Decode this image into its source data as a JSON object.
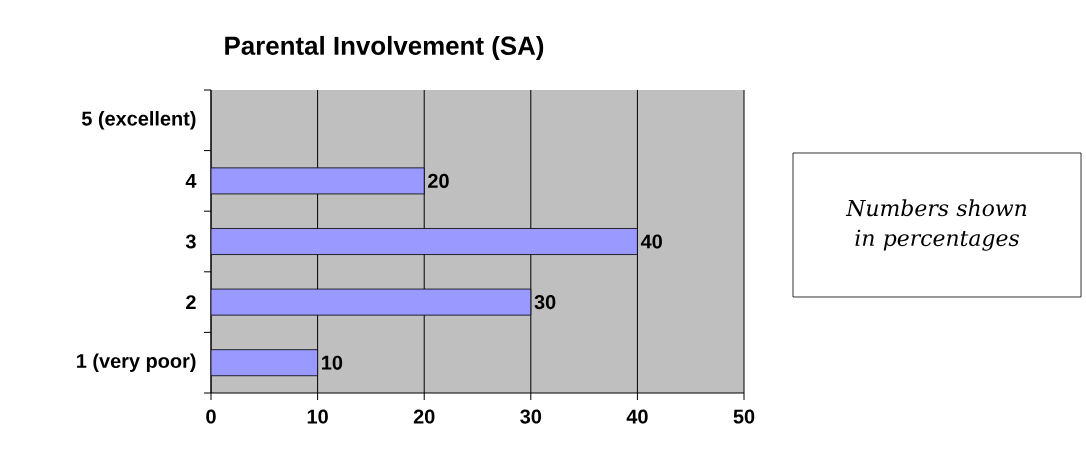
{
  "chart_data": {
    "type": "bar",
    "orientation": "horizontal",
    "title": "Parental Involvement (SA)",
    "categories": [
      "5 (excellent)",
      "4",
      "3",
      "2",
      "1 (very poor)"
    ],
    "values": [
      null,
      20,
      40,
      30,
      10
    ],
    "color": "#9999ff",
    "xlim": [
      0,
      50
    ],
    "xticks": [
      0,
      10,
      20,
      30,
      40,
      50
    ],
    "grid": "x",
    "data_labels": true,
    "annotations": [
      "*Numbers shown in percentages*"
    ]
  }
}
